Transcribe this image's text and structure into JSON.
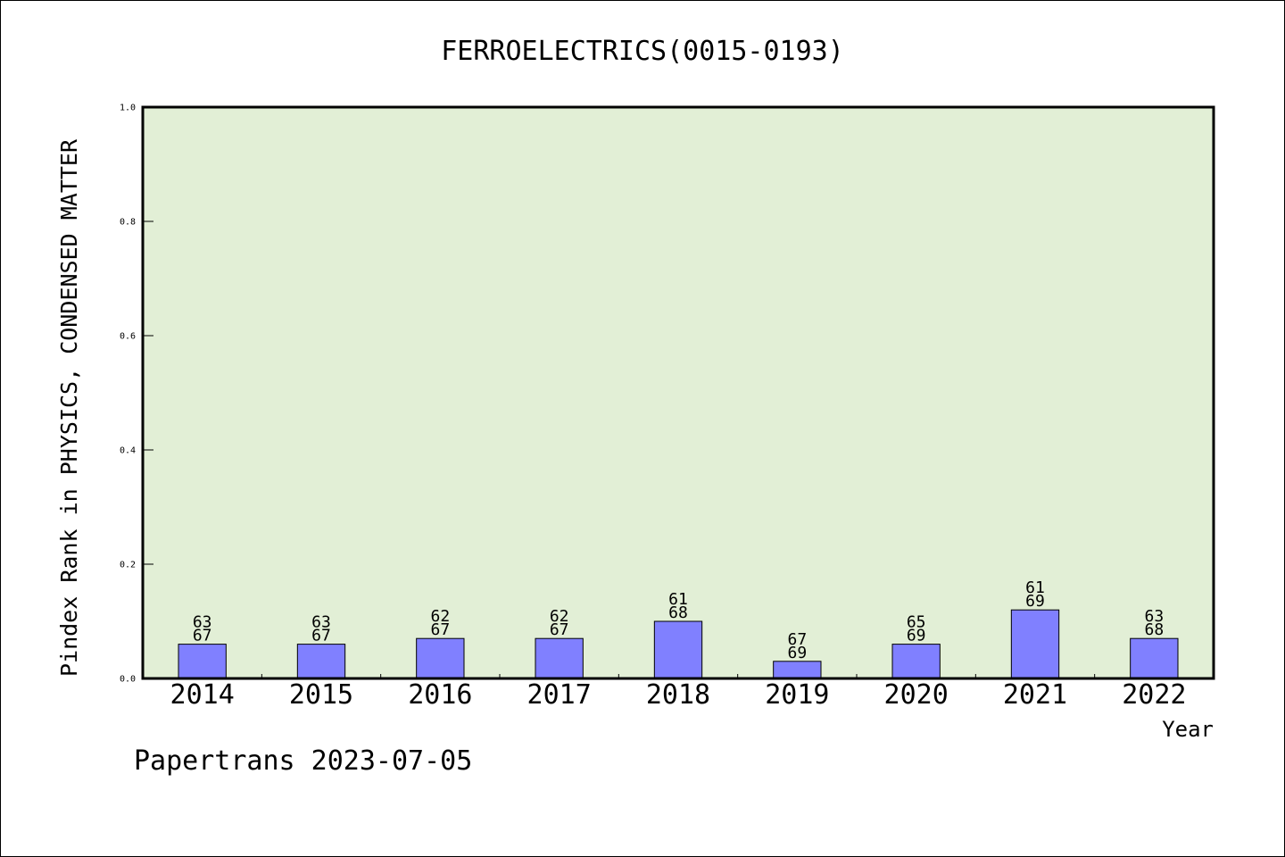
{
  "chart_data": {
    "type": "bar",
    "title": "FERROELECTRICS(0015-0193)",
    "xlabel": "Year",
    "ylabel": "Pindex Rank in PHYSICS, CONDENSED MATTER",
    "categories": [
      "2014",
      "2015",
      "2016",
      "2017",
      "2018",
      "2019",
      "2020",
      "2021",
      "2022"
    ],
    "values": [
      0.06,
      0.06,
      0.07,
      0.07,
      0.1,
      0.03,
      0.06,
      0.12,
      0.07
    ],
    "bar_labels": [
      [
        "63",
        "67"
      ],
      [
        "63",
        "67"
      ],
      [
        "62",
        "67"
      ],
      [
        "62",
        "67"
      ],
      [
        "61",
        "68"
      ],
      [
        "67",
        "69"
      ],
      [
        "65",
        "69"
      ],
      [
        "61",
        "69"
      ],
      [
        "63",
        "68"
      ]
    ],
    "ylim": [
      0,
      1.0
    ],
    "yticks": [
      "0.0",
      "0.2",
      "0.4",
      "0.6",
      "0.8",
      "1.0"
    ],
    "grid": false,
    "colors": {
      "bar": "#8080ff",
      "bar_edge": "#000000",
      "plot_background": "#e2efd6",
      "axis": "#000000"
    }
  },
  "footer": {
    "text": "Papertrans 2023-07-05"
  }
}
